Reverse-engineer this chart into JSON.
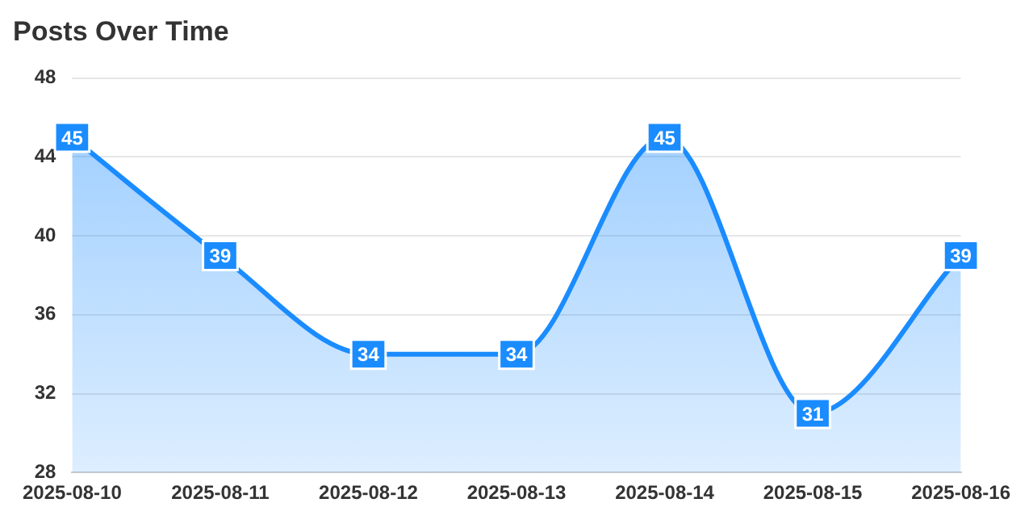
{
  "chart_data": {
    "type": "area",
    "title": "Posts Over Time",
    "categories": [
      "2025-08-10",
      "2025-08-11",
      "2025-08-12",
      "2025-08-13",
      "2025-08-14",
      "2025-08-15",
      "2025-08-16"
    ],
    "series": [
      {
        "color": "#1a8cff",
        "values": [
          45,
          39,
          34,
          34,
          45,
          31,
          39
        ]
      }
    ],
    "ylim": [
      28,
      48
    ],
    "yticks": [
      28,
      32,
      36,
      40,
      44,
      48
    ],
    "grid": "y",
    "data_labels": true,
    "legend": false
  }
}
